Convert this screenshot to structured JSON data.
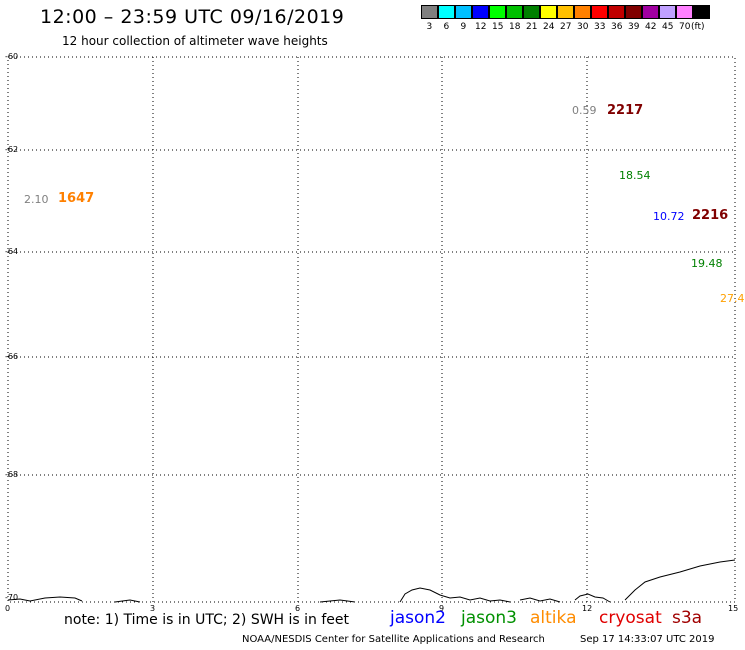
{
  "header": {
    "title": "12:00 – 23:59 UTC 09/16/2019",
    "subtitle": "12 hour collection of altimeter wave heights"
  },
  "legend": {
    "colors": [
      "#808080",
      "#00ffff",
      "#00c0ff",
      "#0000ff",
      "#00ff00",
      "#00c000",
      "#008000",
      "#ffff00",
      "#ffc000",
      "#ff8000",
      "#ff0000",
      "#c00000",
      "#800000",
      "#a000a0",
      "#c0a0ff",
      "#ff80ff",
      "#000000"
    ],
    "labels": [
      "3",
      "6",
      "9",
      "12",
      "15",
      "18",
      "21",
      "24",
      "27",
      "30",
      "33",
      "36",
      "39",
      "42",
      "45",
      "70",
      "(ft)"
    ]
  },
  "axes": {
    "lat_labels": [
      "-60",
      "-62",
      "-64",
      "-66",
      "-68",
      "-70"
    ],
    "lon_labels": [
      "0",
      "3",
      "6",
      "9",
      "12",
      "15"
    ]
  },
  "observations": [
    {
      "text": "0.59",
      "color": "#808080"
    },
    {
      "text": "2217",
      "color": "#800000",
      "big": true
    },
    {
      "text": "18.54",
      "color": "#008000"
    },
    {
      "text": "2.10",
      "color": "#808080"
    },
    {
      "text": "1647",
      "color": "#ff8000",
      "big": true
    },
    {
      "text": "10.72",
      "color": "#0000ff"
    },
    {
      "text": "2216",
      "color": "#800000",
      "big": true
    },
    {
      "text": "19.48",
      "color": "#008000"
    },
    {
      "text": "27.4",
      "color": "#ffa000"
    }
  ],
  "notes": {
    "note": "note: 1) Time is in UTC; 2) SWH is in feet"
  },
  "satellites": [
    {
      "name": "jason2",
      "color": "#0000ff"
    },
    {
      "name": "jason3",
      "color": "#009000"
    },
    {
      "name": "altika",
      "color": "#ff8c00"
    },
    {
      "name": "cryosat",
      "color": "#e00000"
    },
    {
      "name": "s3a",
      "color": "#a00000"
    }
  ],
  "footer": {
    "credit": "NOAA/NESDIS Center for Satellite Applications and Research",
    "timestamp": "Sep 17 14:33:07 UTC 2019"
  }
}
